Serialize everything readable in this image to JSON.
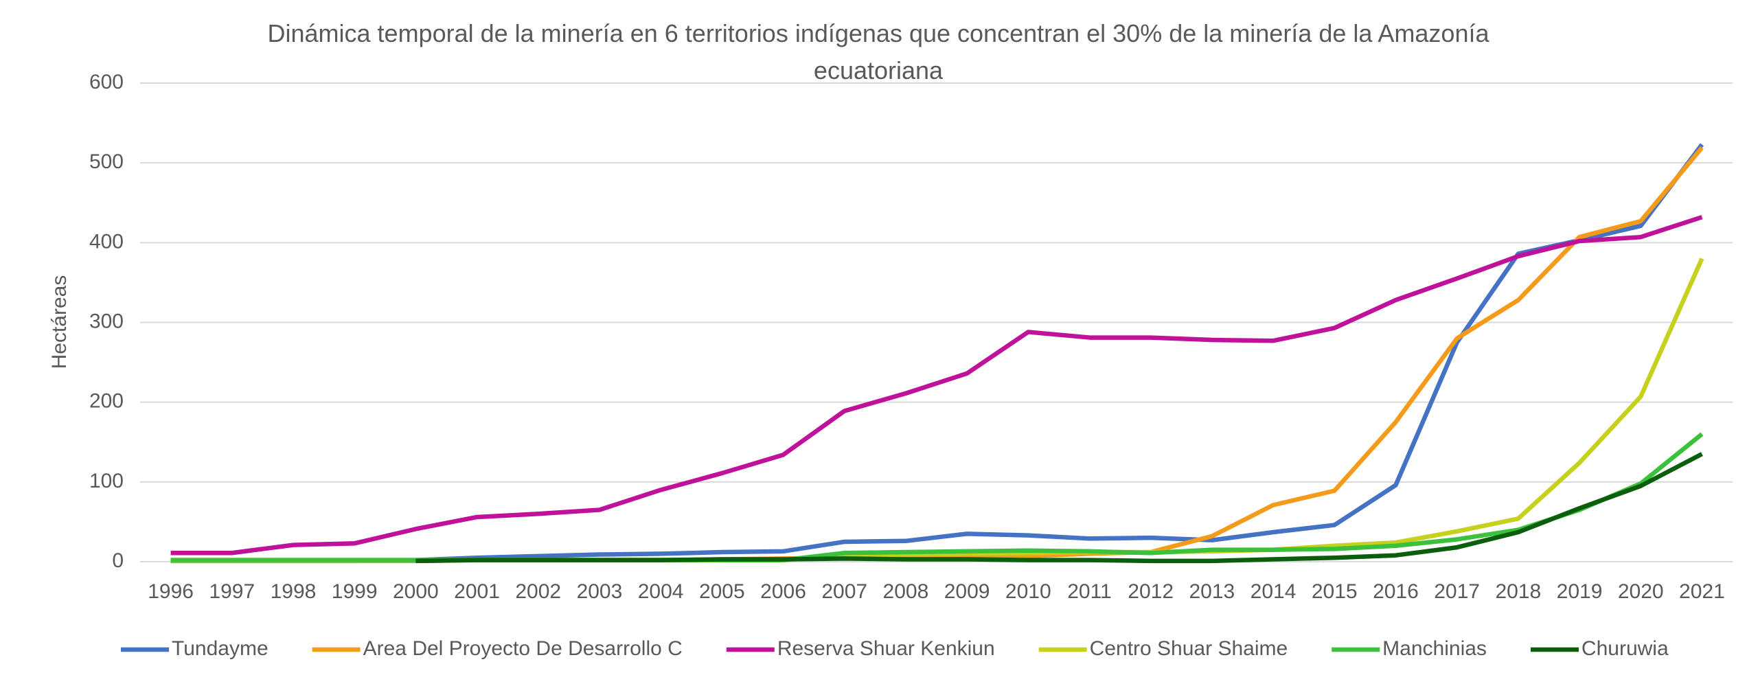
{
  "chart_data": {
    "type": "line",
    "title": "Dinámica temporal de la minería en 6 territorios indígenas que concentran el 30% de la minería de la Amazonía ecuatoriana",
    "y_label": "Hectáreas",
    "categories": [
      "1996",
      "1997",
      "1998",
      "1999",
      "2000",
      "2001",
      "2002",
      "2003",
      "2004",
      "2005",
      "2006",
      "2007",
      "2008",
      "2009",
      "2010",
      "2011",
      "2012",
      "2013",
      "2014",
      "2015",
      "2016",
      "2017",
      "2018",
      "2019",
      "2020",
      "2021"
    ],
    "ylim": [
      0,
      600
    ],
    "yticks": [
      0,
      100,
      200,
      300,
      400,
      500,
      600
    ],
    "grid": true,
    "legend": "bottom",
    "series": [
      {
        "name": "Tundayme",
        "color": "#4472c4",
        "values": [
          1,
          1,
          1,
          1,
          2,
          5,
          7,
          9,
          10,
          12,
          13,
          25,
          26,
          35,
          33,
          29,
          30,
          27,
          37,
          46,
          96,
          275,
          386,
          403,
          421,
          523
        ]
      },
      {
        "name": "Area Del Proyecto De Desarrollo C",
        "color": "#f59b1c",
        "values": [
          1,
          1,
          1,
          1,
          1,
          2,
          2,
          2,
          2,
          3,
          4,
          5,
          5,
          6,
          7,
          10,
          12,
          32,
          71,
          89,
          175,
          280,
          328,
          407,
          427,
          519
        ]
      },
      {
        "name": "Reserva Shuar Kenkiun",
        "color": "#c0119a",
        "values": [
          11,
          11,
          21,
          23,
          41,
          56,
          60,
          65,
          90,
          111,
          134,
          189,
          211,
          236,
          288,
          281,
          281,
          278,
          277,
          293,
          328,
          355,
          383,
          402,
          407,
          432
        ]
      },
      {
        "name": "Centro Shuar Shaime",
        "color": "#c5d11c",
        "values": [
          2,
          2,
          2,
          2,
          2,
          2,
          2,
          2,
          2,
          2,
          2,
          8,
          9,
          10,
          11,
          12,
          12,
          13,
          15,
          20,
          24,
          38,
          54,
          124,
          207,
          380
        ]
      },
      {
        "name": "Manchinias",
        "color": "#3cc13c",
        "values": [
          2,
          2,
          2,
          2,
          2,
          2,
          2,
          2,
          2,
          2,
          2,
          11,
          12,
          13,
          14,
          13,
          11,
          15,
          15,
          16,
          20,
          28,
          40,
          65,
          98,
          160
        ]
      },
      {
        "name": "Churuwia",
        "color": "#0b5e0b",
        "values": [
          null,
          null,
          null,
          null,
          1,
          2,
          2,
          2,
          2,
          3,
          3,
          4,
          3,
          3,
          2,
          2,
          1,
          1,
          3,
          5,
          8,
          18,
          37,
          67,
          95,
          135
        ]
      }
    ]
  }
}
